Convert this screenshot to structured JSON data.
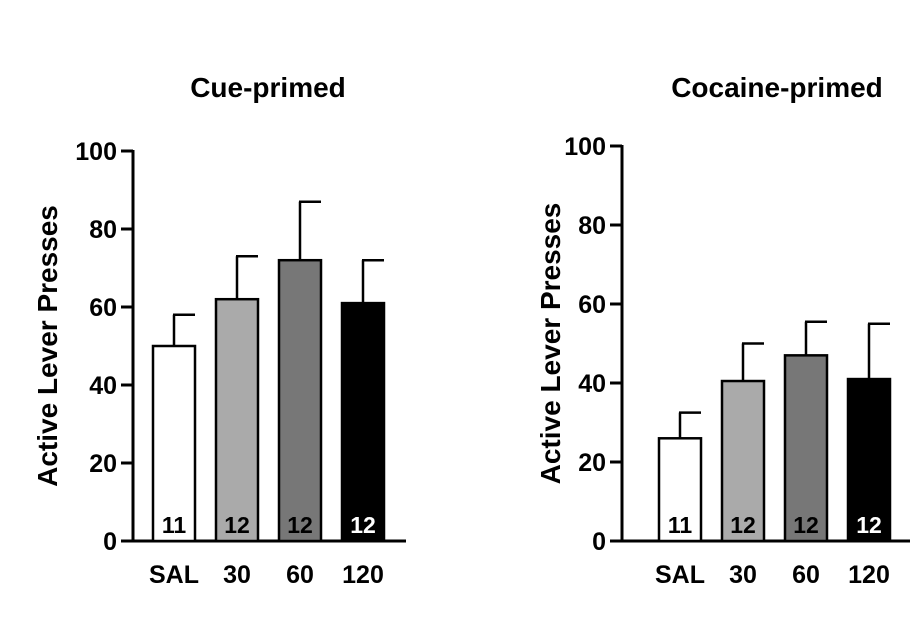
{
  "chart_data": [
    {
      "type": "bar",
      "title": "Cue-primed",
      "ylabel": "Active Lever Presses",
      "xlabel": "",
      "ylim": [
        0,
        100
      ],
      "yticks": [
        0,
        20,
        40,
        60,
        80,
        100
      ],
      "categories": [
        "SAL",
        "30",
        "60",
        "120"
      ],
      "values": [
        50,
        62,
        72,
        61
      ],
      "errors": [
        8,
        11,
        15,
        11
      ],
      "n_labels": [
        "11",
        "12",
        "12",
        "12"
      ],
      "bar_colors": [
        "#ffffff",
        "#aaaaaa",
        "#777777",
        "#000000"
      ],
      "n_label_colors": [
        "#000000",
        "#000000",
        "#000000",
        "#ffffff"
      ],
      "grid": false
    },
    {
      "type": "bar",
      "title": "Cocaine-primed",
      "ylabel": "Active Lever Presses",
      "xlabel": "",
      "ylim": [
        0,
        100
      ],
      "yticks": [
        0,
        20,
        40,
        60,
        80,
        100
      ],
      "categories": [
        "SAL",
        "30",
        "60",
        "120"
      ],
      "values": [
        26,
        40.5,
        47,
        41
      ],
      "errors": [
        6.5,
        9.5,
        8.5,
        14
      ],
      "n_labels": [
        "11",
        "12",
        "12",
        "12"
      ],
      "bar_colors": [
        "#ffffff",
        "#aaaaaa",
        "#777777",
        "#000000"
      ],
      "n_label_colors": [
        "#000000",
        "#000000",
        "#000000",
        "#ffffff"
      ],
      "grid": false
    }
  ]
}
